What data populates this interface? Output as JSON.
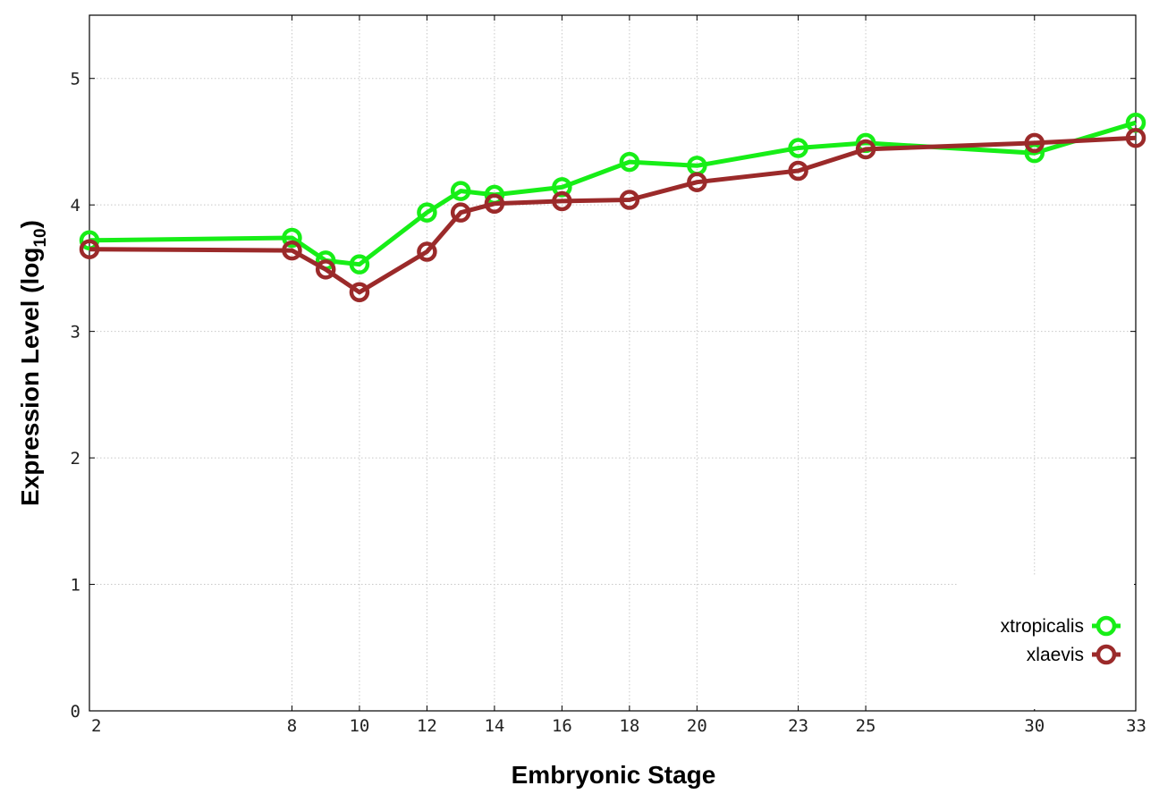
{
  "chart_data": {
    "type": "line",
    "xlabel": "Embryonic Stage",
    "ylabel_main": "Expression Level (log",
    "ylabel_sub": "10",
    "ylabel_close": ")",
    "x": [
      2,
      8,
      9,
      10,
      12,
      13,
      14,
      16,
      18,
      20,
      23,
      25,
      30,
      33
    ],
    "xticks": [
      2,
      8,
      10,
      12,
      14,
      16,
      18,
      20,
      23,
      25,
      30,
      33
    ],
    "xlim": [
      2,
      33
    ],
    "yticks": [
      0,
      1,
      2,
      3,
      4,
      5
    ],
    "ylim": [
      0,
      5.5
    ],
    "grid": true,
    "legend_position": "bottom-right",
    "series": [
      {
        "name": "xtropicalis",
        "color": "#17ee17",
        "values": [
          3.72,
          3.74,
          3.56,
          3.53,
          3.94,
          4.11,
          4.08,
          4.14,
          4.34,
          4.31,
          4.45,
          4.49,
          4.41,
          4.65
        ]
      },
      {
        "name": "xlaevis",
        "color": "#9b2a2a",
        "values": [
          3.65,
          3.64,
          3.49,
          3.31,
          3.63,
          3.94,
          4.01,
          4.03,
          4.04,
          4.18,
          4.27,
          4.44,
          4.49,
          4.53
        ]
      }
    ]
  }
}
